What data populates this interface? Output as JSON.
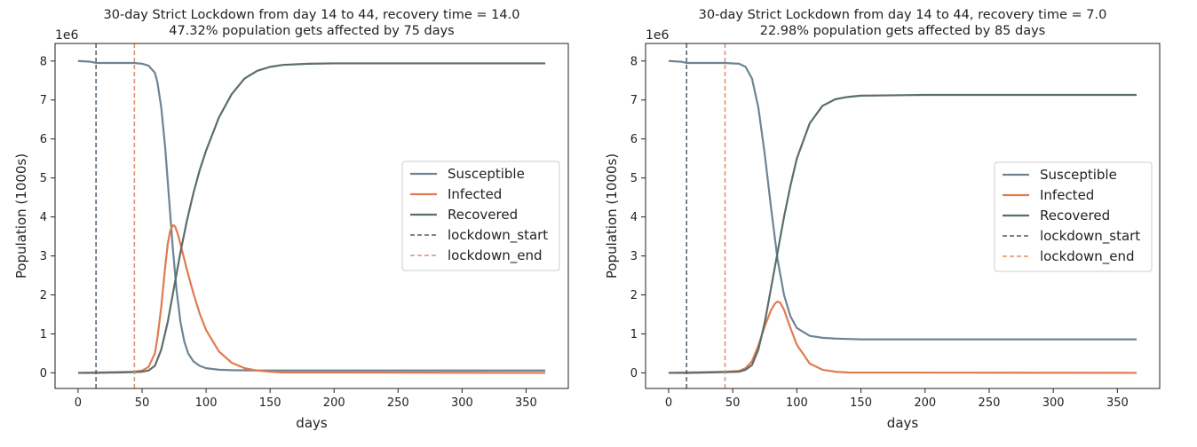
{
  "chart_data": [
    {
      "type": "line",
      "title": [
        "30-day Strict Lockdown from day 14 to 44, recovery time = 14.0",
        "47.32% population gets affected by 75 days"
      ],
      "xlabel": "days",
      "ylabel": "Population (1000s)",
      "y_offset_label": "1e6",
      "xlim": [
        -18,
        383
      ],
      "ylim": [
        -0.4,
        8.45
      ],
      "x_ticks": [
        0,
        50,
        100,
        150,
        200,
        250,
        300,
        350
      ],
      "y_ticks": [
        0,
        1,
        2,
        3,
        4,
        5,
        6,
        7,
        8
      ],
      "legend_position": "center-right",
      "vlines": [
        {
          "name": "lockdown_start",
          "x": 14,
          "color": "#4b5e6e"
        },
        {
          "name": "lockdown_end",
          "x": 44,
          "color": "#d8906a"
        }
      ],
      "series": [
        {
          "name": "Susceptible",
          "color": "#6d8494",
          "x": [
            0,
            10,
            14,
            30,
            44,
            50,
            55,
            60,
            62,
            65,
            68,
            71,
            74,
            77,
            80,
            83,
            86,
            90,
            95,
            100,
            110,
            120,
            140,
            160,
            200,
            365
          ],
          "y": [
            8.0,
            7.98,
            7.95,
            7.95,
            7.95,
            7.93,
            7.88,
            7.7,
            7.45,
            6.8,
            5.8,
            4.5,
            3.2,
            2.1,
            1.3,
            0.8,
            0.5,
            0.3,
            0.18,
            0.12,
            0.08,
            0.07,
            0.06,
            0.06,
            0.06,
            0.06
          ]
        },
        {
          "name": "Infected",
          "color": "#e07b4f",
          "x": [
            0,
            14,
            30,
            44,
            50,
            55,
            60,
            62,
            65,
            68,
            70,
            72,
            74,
            75,
            76,
            78,
            80,
            85,
            90,
            95,
            100,
            110,
            120,
            130,
            140,
            150,
            160,
            365
          ],
          "y": [
            0.0,
            0.01,
            0.02,
            0.03,
            0.06,
            0.15,
            0.5,
            0.9,
            1.7,
            2.7,
            3.3,
            3.65,
            3.78,
            3.78,
            3.74,
            3.55,
            3.3,
            2.65,
            2.05,
            1.52,
            1.1,
            0.55,
            0.26,
            0.12,
            0.06,
            0.03,
            0.01,
            0.0
          ]
        },
        {
          "name": "Recovered",
          "color": "#5b6e6a",
          "x": [
            0,
            14,
            30,
            44,
            50,
            55,
            60,
            65,
            70,
            75,
            80,
            85,
            90,
            95,
            100,
            110,
            120,
            130,
            140,
            150,
            160,
            180,
            200,
            365
          ],
          "y": [
            0.0,
            0.0,
            0.01,
            0.02,
            0.03,
            0.06,
            0.18,
            0.6,
            1.3,
            2.2,
            3.1,
            3.9,
            4.6,
            5.2,
            5.7,
            6.55,
            7.15,
            7.55,
            7.75,
            7.85,
            7.9,
            7.93,
            7.94,
            7.94
          ]
        }
      ]
    },
    {
      "type": "line",
      "title": [
        "30-day Strict Lockdown from day 14 to 44, recovery time = 7.0",
        "22.98% population gets affected by 85 days"
      ],
      "xlabel": "days",
      "ylabel": "Population (1000s)",
      "y_offset_label": "1e6",
      "xlim": [
        -18,
        383
      ],
      "ylim": [
        -0.4,
        8.45
      ],
      "x_ticks": [
        0,
        50,
        100,
        150,
        200,
        250,
        300,
        350
      ],
      "y_ticks": [
        0,
        1,
        2,
        3,
        4,
        5,
        6,
        7,
        8
      ],
      "legend_position": "center-right",
      "vlines": [
        {
          "name": "lockdown_start",
          "x": 14,
          "color": "#4b5e6e"
        },
        {
          "name": "lockdown_end",
          "x": 44,
          "color": "#d8906a"
        }
      ],
      "series": [
        {
          "name": "Susceptible",
          "color": "#6d8494",
          "x": [
            0,
            10,
            14,
            30,
            44,
            55,
            60,
            65,
            70,
            75,
            80,
            85,
            90,
            95,
            100,
            110,
            120,
            130,
            140,
            150,
            365
          ],
          "y": [
            8.0,
            7.98,
            7.95,
            7.95,
            7.95,
            7.93,
            7.85,
            7.55,
            6.8,
            5.6,
            4.2,
            2.9,
            2.0,
            1.45,
            1.15,
            0.95,
            0.9,
            0.88,
            0.87,
            0.86,
            0.86
          ]
        },
        {
          "name": "Infected",
          "color": "#e07b4f",
          "x": [
            0,
            14,
            30,
            44,
            55,
            60,
            65,
            70,
            75,
            80,
            83,
            85,
            87,
            90,
            95,
            100,
            110,
            120,
            130,
            140,
            365
          ],
          "y": [
            0.0,
            0.01,
            0.02,
            0.03,
            0.05,
            0.12,
            0.3,
            0.7,
            1.2,
            1.62,
            1.78,
            1.83,
            1.8,
            1.62,
            1.15,
            0.72,
            0.24,
            0.08,
            0.03,
            0.01,
            0.0
          ]
        },
        {
          "name": "Recovered",
          "color": "#5b6e6a",
          "x": [
            0,
            14,
            30,
            44,
            55,
            60,
            65,
            70,
            75,
            80,
            85,
            90,
            95,
            100,
            110,
            120,
            130,
            140,
            150,
            200,
            365
          ],
          "y": [
            0.0,
            0.0,
            0.01,
            0.02,
            0.03,
            0.08,
            0.2,
            0.6,
            1.3,
            2.2,
            3.1,
            4.0,
            4.8,
            5.5,
            6.4,
            6.85,
            7.02,
            7.08,
            7.11,
            7.13,
            7.13
          ]
        }
      ]
    }
  ]
}
